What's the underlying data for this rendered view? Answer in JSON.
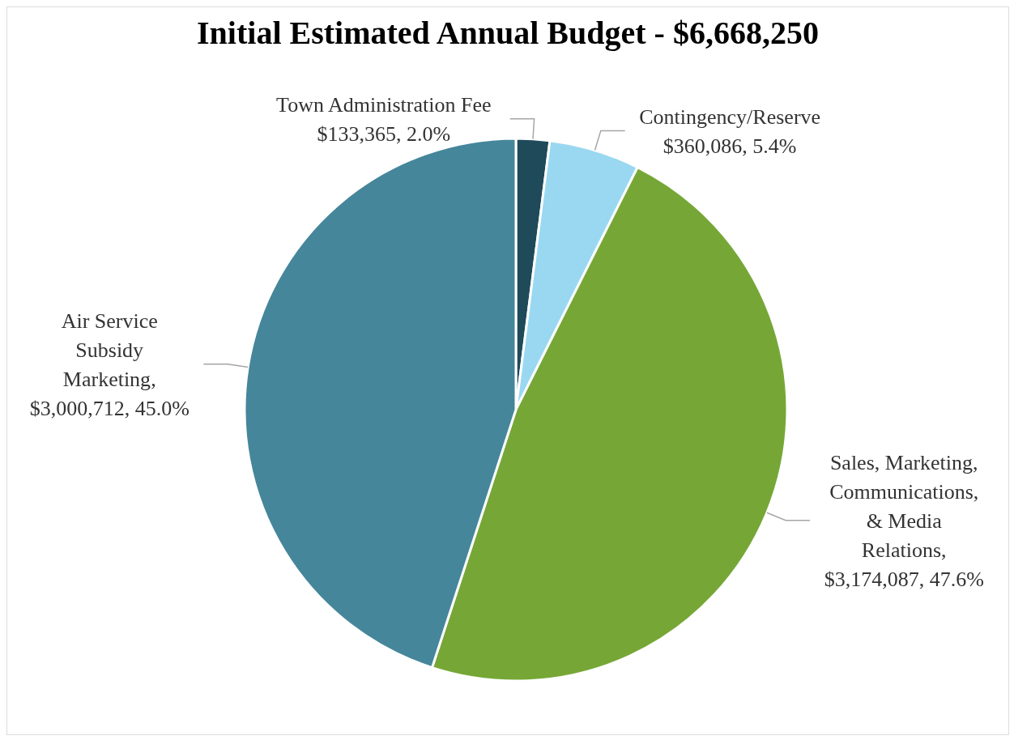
{
  "chart_data": {
    "type": "pie",
    "title": "Initial Estimated Annual Budget - $6,668,250",
    "categories": [
      "Town Administration Fee",
      "Contingency/Reserve",
      "Sales, Marketing, Communications, & Media Relations",
      "Air Service Subsidy Marketing"
    ],
    "values": [
      133365,
      360086,
      3174087,
      3000712
    ],
    "colors": [
      "#1f4a5a",
      "#99d8f0",
      "#76a736",
      "#45869b"
    ],
    "value_labels": [
      "$133,365, 2.0%",
      "$360,086, 5.4%",
      ",\n$3,174,087, 47.6%",
      ",\n$3,000,712, 45.0%"
    ],
    "legend": false
  }
}
